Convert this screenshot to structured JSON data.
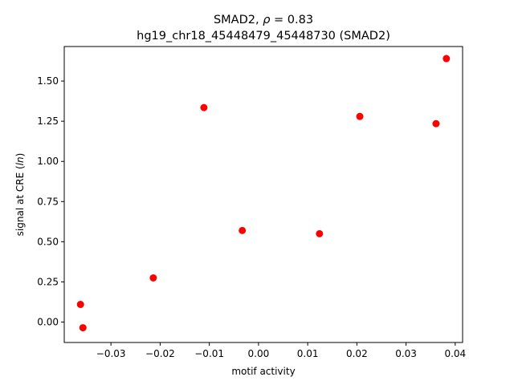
{
  "chart_data": {
    "type": "scatter",
    "title_prefix": "SMAD2, ",
    "title_rho_symbol": "ρ",
    "title_rho_value": " = 0.83",
    "subtitle": "hg19_chr18_45448479_45448730 (SMAD2)",
    "xlabel": "motif activity",
    "ylabel_prefix": "signal at CRE (",
    "ylabel_italic": "ln",
    "ylabel_suffix": ")",
    "xlim": [
      -0.0395,
      0.0415
    ],
    "ylim": [
      -0.127,
      1.715
    ],
    "xticks": [
      -0.03,
      -0.02,
      -0.01,
      0.0,
      0.01,
      0.02,
      0.03,
      0.04
    ],
    "xtick_labels": [
      "−0.03",
      "−0.02",
      "−0.01",
      "0.00",
      "0.01",
      "0.02",
      "0.03",
      "0.04"
    ],
    "yticks": [
      0.0,
      0.25,
      0.5,
      0.75,
      1.0,
      1.25,
      1.5
    ],
    "ytick_labels": [
      "0.00",
      "0.25",
      "0.50",
      "0.75",
      "1.00",
      "1.25",
      "1.50"
    ],
    "point_color": "#ff0000",
    "grid": false,
    "series": [
      {
        "x": [
          -0.0362,
          -0.0357,
          -0.0214,
          -0.0111,
          -0.0033,
          0.0124,
          0.0206,
          0.0361,
          0.0382
        ],
        "y": [
          0.11,
          -0.035,
          0.275,
          1.335,
          0.57,
          0.55,
          1.28,
          1.235,
          1.64
        ]
      }
    ]
  }
}
